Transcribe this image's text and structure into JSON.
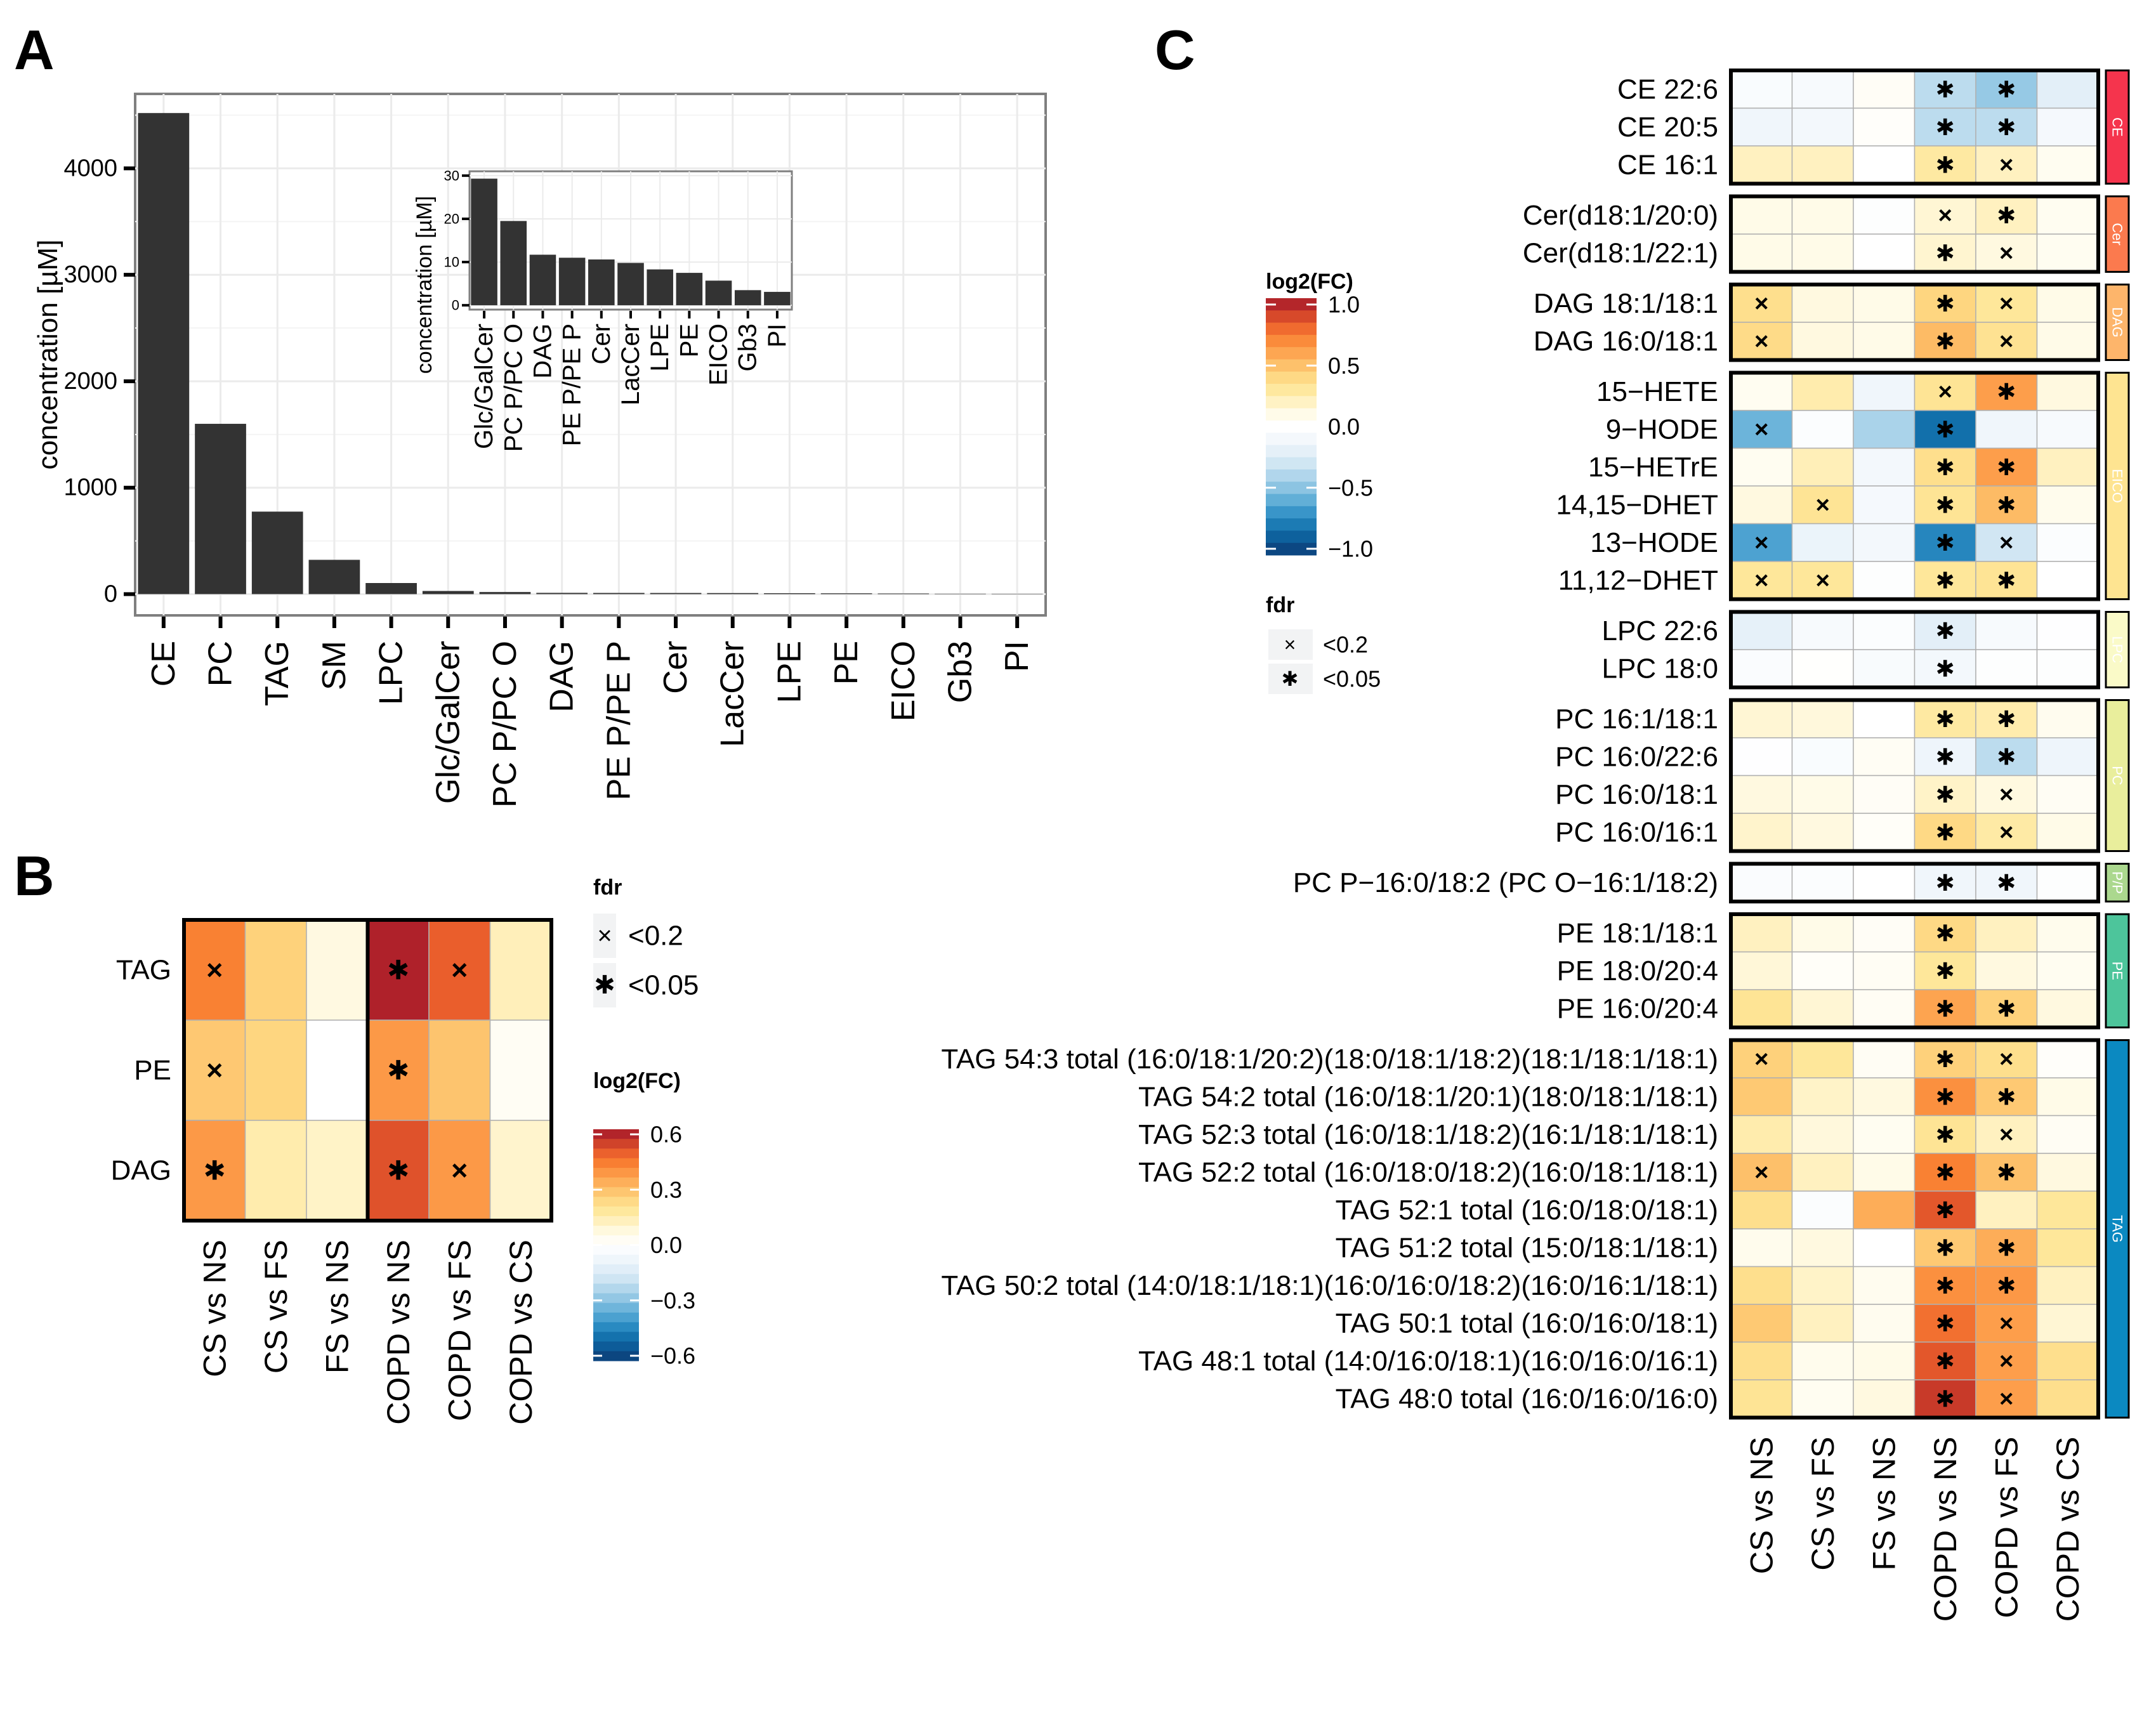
{
  "panels": {
    "a": "A",
    "b": "B",
    "c": "C"
  },
  "chart_data": [
    {
      "id": "A-main",
      "type": "bar",
      "title": "",
      "xlabel": "",
      "ylabel": "concentration [µM]",
      "ylim": [
        -200,
        4700
      ],
      "yticks": [
        0,
        1000,
        2000,
        3000,
        4000
      ],
      "grid": true,
      "categories": [
        "CE",
        "PC",
        "TAG",
        "SM",
        "LPC",
        "Glc/GalCer",
        "PC P/PC O",
        "DAG",
        "PE P/PE P",
        "Cer",
        "LacCer",
        "LPE",
        "PE",
        "EICO",
        "Gb3",
        "PI"
      ],
      "values": [
        4520,
        1600,
        775,
        322,
        104,
        29.3,
        19.5,
        11.7,
        11.0,
        10.6,
        9.8,
        8.3,
        7.5,
        5.7,
        3.5,
        3.1
      ]
    },
    {
      "id": "A-inset",
      "type": "bar",
      "title": "",
      "xlabel": "",
      "ylabel": "concentration [µM]",
      "ylim": [
        -1,
        31
      ],
      "yticks": [
        0,
        10,
        20,
        30
      ],
      "grid": true,
      "categories": [
        "Glc/GalCer",
        "PC P/PC O",
        "DAG",
        "PE P/PE P",
        "Cer",
        "LacCer",
        "LPE",
        "PE",
        "EICO",
        "Gb3",
        "PI"
      ],
      "values": [
        29.3,
        19.5,
        11.7,
        11.0,
        10.6,
        9.8,
        8.3,
        7.5,
        5.7,
        3.5,
        3.1
      ]
    },
    {
      "id": "B",
      "type": "heatmap",
      "title": "",
      "columns": [
        "CS vs NS",
        "CS vs FS",
        "FS vs NS",
        "COPD vs NS",
        "COPD vs FS",
        "COPD vs CS"
      ],
      "rows": [
        "TAG",
        "PE",
        "DAG"
      ],
      "values": [
        [
          0.42,
          0.25,
          0.07,
          0.58,
          0.48,
          0.13
        ],
        [
          0.27,
          0.24,
          0.0,
          0.37,
          0.28,
          0.03
        ],
        [
          0.37,
          0.15,
          0.11,
          0.5,
          0.37,
          0.1
        ]
      ],
      "fdr": [
        [
          "x",
          "",
          "",
          "*",
          "x",
          ""
        ],
        [
          "x",
          "",
          "",
          "*",
          "",
          ""
        ],
        [
          "*",
          "",
          "",
          "*",
          "x",
          ""
        ]
      ],
      "legend": {
        "fdr_title": "fdr",
        "fdr_items": [
          {
            "symbol": "×",
            "label": "<0.2"
          },
          {
            "symbol": "✱",
            "label": "<0.05"
          }
        ],
        "color_title": "log2(FC)",
        "color_range": [
          -0.6,
          0.6
        ],
        "color_ticks": [
          "0.6",
          "0.3",
          "0.0",
          "−0.3",
          "−0.6"
        ]
      }
    },
    {
      "id": "C",
      "type": "heatmap",
      "title": "",
      "columns": [
        "CS vs NS",
        "CS vs FS",
        "FS vs NS",
        "COPD vs NS",
        "COPD vs FS",
        "COPD vs CS"
      ],
      "groups": [
        {
          "name": "CE",
          "color": "#f5344d",
          "rows": [
            {
              "label": "CE 22:6",
              "values": [
                -0.05,
                -0.07,
                0.04,
                -0.35,
                -0.45,
                -0.2
              ],
              "fdr": [
                "",
                "",
                "",
                "*",
                "*",
                ""
              ]
            },
            {
              "label": "CE 20:5",
              "values": [
                -0.12,
                -0.1,
                0.02,
                -0.35,
                -0.35,
                -0.08
              ],
              "fdr": [
                "",
                "",
                "",
                "*",
                "*",
                ""
              ]
            },
            {
              "label": "CE 16:1",
              "values": [
                0.2,
                0.2,
                0.0,
                0.28,
                0.2,
                0.06
              ],
              "fdr": [
                "",
                "",
                "",
                "*",
                "x",
                ""
              ]
            }
          ]
        },
        {
          "name": "Cer",
          "color": "#fb7a4e",
          "rows": [
            {
              "label": "Cer(d18:1/20:0)",
              "values": [
                0.1,
                0.1,
                -0.02,
                0.15,
                0.2,
                0.06
              ],
              "fdr": [
                "",
                "",
                "",
                "x",
                "*",
                ""
              ]
            },
            {
              "label": "Cer(d18:1/22:1)",
              "values": [
                0.1,
                0.1,
                0.0,
                0.16,
                0.12,
                0.06
              ],
              "fdr": [
                "",
                "",
                "",
                "*",
                "x",
                ""
              ]
            }
          ]
        },
        {
          "name": "DAG",
          "color": "#fdb56b",
          "rows": [
            {
              "label": "DAG 18:1/18:1",
              "values": [
                0.35,
                0.12,
                0.1,
                0.4,
                0.3,
                0.1
              ],
              "fdr": [
                "x",
                "",
                "",
                "*",
                "x",
                ""
              ]
            },
            {
              "label": "DAG 16:0/18:1",
              "values": [
                0.37,
                0.12,
                0.1,
                0.5,
                0.33,
                0.1
              ],
              "fdr": [
                "x",
                "",
                "",
                "*",
                "x",
                ""
              ]
            }
          ]
        },
        {
          "name": "EICO",
          "color": "#fee491",
          "rows": [
            {
              "label": "15−HETE",
              "values": [
                0.06,
                0.25,
                -0.12,
                0.32,
                0.6,
                0.12
              ],
              "fdr": [
                "",
                "",
                "",
                "x",
                "*",
                ""
              ]
            },
            {
              "label": "9−HODE",
              "values": [
                -0.55,
                -0.03,
                -0.4,
                -0.8,
                -0.12,
                -0.07
              ],
              "fdr": [
                "x",
                "",
                "",
                "*",
                "",
                ""
              ]
            },
            {
              "label": "15−HETrE",
              "values": [
                0.06,
                0.22,
                -0.1,
                0.35,
                0.6,
                0.2
              ],
              "fdr": [
                "",
                "",
                "",
                "*",
                "*",
                ""
              ]
            },
            {
              "label": "14,15−DHET",
              "values": [
                0.12,
                0.32,
                -0.08,
                0.32,
                0.5,
                0.08
              ],
              "fdr": [
                "",
                "x",
                "",
                "*",
                "*",
                ""
              ]
            },
            {
              "label": "13−HODE",
              "values": [
                -0.62,
                -0.15,
                -0.1,
                -0.72,
                -0.28,
                -0.03
              ],
              "fdr": [
                "x",
                "",
                "",
                "*",
                "x",
                ""
              ]
            },
            {
              "label": "11,12−DHET",
              "values": [
                0.3,
                0.3,
                -0.02,
                0.3,
                0.32,
                0.0
              ],
              "fdr": [
                "x",
                "x",
                "",
                "*",
                "*",
                ""
              ]
            }
          ]
        },
        {
          "name": "LPC",
          "color": "#fafac8",
          "rows": [
            {
              "label": "LPC 22:6",
              "values": [
                -0.18,
                -0.07,
                -0.03,
                -0.2,
                -0.07,
                -0.01
              ],
              "fdr": [
                "",
                "",
                "",
                "*",
                "",
                ""
              ]
            },
            {
              "label": "LPC 18:0",
              "values": [
                -0.04,
                0.01,
                -0.06,
                -0.1,
                -0.02,
                -0.02
              ],
              "fdr": [
                "",
                "",
                "",
                "*",
                "",
                ""
              ]
            }
          ]
        },
        {
          "name": "PC",
          "color": "#e9ee9c",
          "rows": [
            {
              "label": "PC 16:1/18:1",
              "values": [
                0.15,
                0.13,
                0.0,
                0.28,
                0.25,
                0.07
              ],
              "fdr": [
                "",
                "",
                "",
                "*",
                "*",
                ""
              ]
            },
            {
              "label": "PC 16:0/22:6",
              "values": [
                -0.01,
                -0.05,
                0.05,
                -0.13,
                -0.35,
                -0.13
              ],
              "fdr": [
                "",
                "",
                "",
                "*",
                "*",
                ""
              ]
            },
            {
              "label": "PC 16:0/18:1",
              "values": [
                0.12,
                0.1,
                0.04,
                0.18,
                0.12,
                0.05
              ],
              "fdr": [
                "",
                "",
                "",
                "*",
                "x",
                ""
              ]
            },
            {
              "label": "PC 16:0/16:1",
              "values": [
                0.17,
                0.12,
                0.03,
                0.38,
                0.27,
                0.1
              ],
              "fdr": [
                "",
                "",
                "",
                "*",
                "x",
                ""
              ]
            }
          ]
        },
        {
          "name": "P/P",
          "color": "#abd88e",
          "rows": [
            {
              "label": "PC P−16:0/18:2 (PC O−16:1/18:2)",
              "values": [
                -0.04,
                -0.03,
                0.0,
                -0.12,
                -0.12,
                -0.02
              ],
              "fdr": [
                "",
                "",
                "",
                "*",
                "*",
                ""
              ]
            }
          ]
        },
        {
          "name": "PE",
          "color": "#4dc59b",
          "rows": [
            {
              "label": "PE 18:1/18:1",
              "values": [
                0.2,
                0.1,
                0.04,
                0.38,
                0.2,
                0.08
              ],
              "fdr": [
                "",
                "",
                "",
                "*",
                "",
                ""
              ]
            },
            {
              "label": "PE 18:0/20:4",
              "values": [
                0.14,
                0.03,
                0.05,
                0.3,
                0.12,
                0.06
              ],
              "fdr": [
                "",
                "",
                "",
                "*",
                "",
                ""
              ]
            },
            {
              "label": "PE 16:0/20:4",
              "values": [
                0.32,
                0.15,
                0.05,
                0.58,
                0.42,
                0.12
              ],
              "fdr": [
                "",
                "",
                "",
                "*",
                "*",
                ""
              ]
            }
          ]
        },
        {
          "name": "TAG",
          "color": "#0b89c1",
          "rows": [
            {
              "label": "TAG 54:3 total (16:0/18:1/20:2)(18:0/18:1/18:2)(18:1/18:1/18:1)",
              "values": [
                0.42,
                0.3,
                0.05,
                0.42,
                0.35,
                0.02
              ],
              "fdr": [
                "x",
                "",
                "",
                "*",
                "x",
                ""
              ]
            },
            {
              "label": "TAG 54:2 total (16:0/18:1/20:1)(18:0/18:1/18:1)",
              "values": [
                0.45,
                0.18,
                0.12,
                0.65,
                0.45,
                0.1
              ],
              "fdr": [
                "",
                "",
                "",
                "*",
                "*",
                ""
              ]
            },
            {
              "label": "TAG 52:3 total (16:0/18:1/18:2)(16:1/18:1/18:1)",
              "values": [
                0.25,
                0.13,
                0.06,
                0.32,
                0.2,
                0.05
              ],
              "fdr": [
                "",
                "",
                "",
                "*",
                "x",
                ""
              ]
            },
            {
              "label": "TAG 52:2 total (16:0/18:0/18:2)(16:0/18:1/18:1)",
              "values": [
                0.48,
                0.2,
                0.1,
                0.7,
                0.48,
                0.12
              ],
              "fdr": [
                "x",
                "",
                "",
                "*",
                "*",
                ""
              ]
            },
            {
              "label": "TAG 52:1 total (16:0/18:0/18:1)",
              "values": [
                0.35,
                -0.03,
                0.55,
                0.82,
                0.2,
                0.3
              ],
              "fdr": [
                "",
                "",
                "",
                "*",
                "",
                ""
              ]
            },
            {
              "label": "TAG 51:2 total (15:0/18:1/18:1)",
              "values": [
                0.08,
                0.12,
                0.0,
                0.45,
                0.55,
                0.3
              ],
              "fdr": [
                "",
                "",
                "",
                "*",
                "*",
                ""
              ]
            },
            {
              "label": "TAG 50:2 total (14:0/18:1/18:1)(16:0/16:0/18:2)(16:0/16:1/18:1)",
              "values": [
                0.35,
                0.18,
                0.07,
                0.65,
                0.62,
                0.2
              ],
              "fdr": [
                "",
                "",
                "",
                "*",
                "*",
                ""
              ]
            },
            {
              "label": "TAG 50:1 total (16:0/16:0/18:1)",
              "values": [
                0.45,
                0.2,
                0.07,
                0.75,
                0.6,
                0.15
              ],
              "fdr": [
                "",
                "",
                "",
                "*",
                "x",
                ""
              ]
            },
            {
              "label": "TAG 48:1 total (14:0/16:0/18:1)(16:0/16:0/16:1)",
              "values": [
                0.35,
                0.08,
                0.1,
                0.82,
                0.6,
                0.35
              ],
              "fdr": [
                "",
                "",
                "",
                "*",
                "x",
                ""
              ]
            },
            {
              "label": "TAG 48:0 total (16:0/16:0/16:0)",
              "values": [
                0.32,
                0.06,
                0.12,
                0.9,
                0.6,
                0.35
              ],
              "fdr": [
                "",
                "",
                "",
                "*",
                "x",
                ""
              ]
            }
          ]
        }
      ],
      "legend": {
        "color_title": "log2(FC)",
        "color_range": [
          -1.0,
          1.0
        ],
        "color_ticks": [
          "1.0",
          "0.5",
          "0.0",
          "−0.5",
          "−1.0"
        ],
        "fdr_title": "fdr",
        "fdr_items": [
          {
            "symbol": "×",
            "label": "<0.2"
          },
          {
            "symbol": "✱",
            "label": "<0.05"
          }
        ]
      }
    }
  ]
}
